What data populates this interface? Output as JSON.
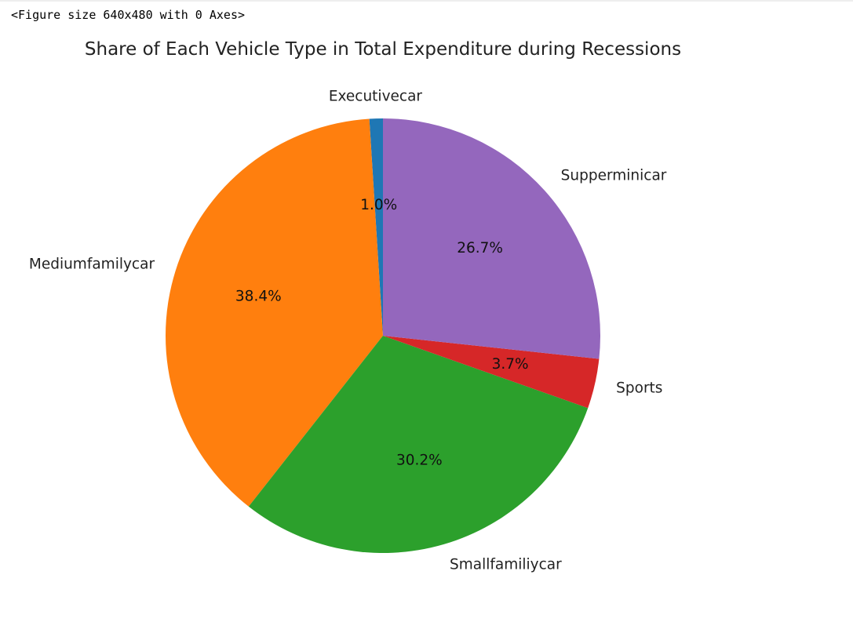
{
  "output": {
    "figure_repr": "<Figure size 640x480 with 0 Axes>"
  },
  "chart_data": {
    "type": "pie",
    "title": "Share of Each Vehicle Type in Total Expenditure during Recessions",
    "start_angle_deg": 90,
    "counterclock": true,
    "autopct_format": "%1.1f%%",
    "slices": [
      {
        "label": "Executivecar",
        "percent": 1.0,
        "pct_label": "1.0%",
        "color": "#1f77b4"
      },
      {
        "label": "Mediumfamilycar",
        "percent": 38.4,
        "pct_label": "38.4%",
        "color": "#ff7f0e"
      },
      {
        "label": "Smallfamiliycar",
        "percent": 30.2,
        "pct_label": "30.2%",
        "color": "#2ca02c"
      },
      {
        "label": "Sports",
        "percent": 3.7,
        "pct_label": "3.7%",
        "color": "#d62728"
      },
      {
        "label": "Supperminicar",
        "percent": 26.7,
        "pct_label": "26.7%",
        "color": "#9467bd"
      }
    ]
  }
}
